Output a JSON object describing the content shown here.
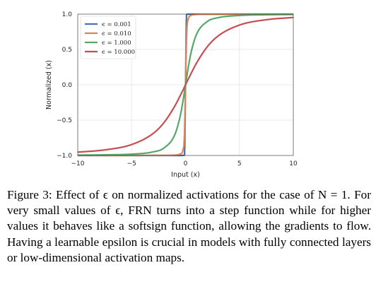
{
  "chart_data": {
    "type": "line",
    "title": "",
    "xlabel": "Input (x)",
    "ylabel": "Normalized (x)",
    "xlim": [
      -10,
      10
    ],
    "ylim": [
      -1,
      1
    ],
    "xticks": [
      -10,
      -5,
      0,
      5,
      10
    ],
    "xtick_labels": [
      "−10",
      "−5",
      "0",
      "5",
      "10"
    ],
    "yticks": [
      -1,
      -0.5,
      0,
      0.5,
      1
    ],
    "ytick_labels": [
      "−1.0",
      "−0.5",
      "0.0",
      "0.5",
      "1.0"
    ],
    "grid": true,
    "legend_position": "top-left",
    "x": [
      -10,
      -7.5,
      -5,
      -3,
      -2,
      -1,
      -0.5,
      -0.25,
      -0.1,
      0,
      0.1,
      0.25,
      0.5,
      1,
      2,
      3,
      5,
      7.5,
      10
    ],
    "series": [
      {
        "name": "ϵ = 0.001",
        "color": "#4c72b0",
        "values": [
          -1.0,
          -1.0,
          -1.0,
          -1.0,
          -1.0,
          -1.0,
          -1.0,
          -0.999,
          -0.995,
          0.0,
          0.995,
          0.999,
          1.0,
          1.0,
          1.0,
          1.0,
          1.0,
          1.0,
          1.0
        ]
      },
      {
        "name": "ϵ = 0.010",
        "color": "#dd8452",
        "values": [
          -1.0,
          -1.0,
          -1.0,
          -0.999,
          -0.999,
          -0.995,
          -0.98,
          -0.928,
          -0.707,
          0.0,
          0.707,
          0.928,
          0.98,
          0.995,
          0.999,
          0.999,
          1.0,
          1.0,
          1.0
        ]
      },
      {
        "name": "ϵ = 1.000",
        "color": "#55a868",
        "values": [
          -0.995,
          -0.991,
          -0.981,
          -0.949,
          -0.894,
          -0.707,
          -0.447,
          -0.243,
          -0.1,
          0.0,
          0.1,
          0.243,
          0.447,
          0.707,
          0.894,
          0.949,
          0.981,
          0.991,
          0.995
        ]
      },
      {
        "name": "ϵ = 10.000",
        "color": "#c44e52",
        "values": [
          -0.953,
          -0.921,
          -0.845,
          -0.688,
          -0.535,
          -0.302,
          -0.156,
          -0.079,
          -0.032,
          0.0,
          0.032,
          0.079,
          0.156,
          0.302,
          0.535,
          0.688,
          0.845,
          0.921,
          0.953
        ]
      }
    ]
  },
  "caption": "Figure 3: Effect of ϵ on normalized activations for the case of N = 1. For very small values of ϵ, FRN turns into a step function while for higher values it behaves like a softsign function, allowing the gradients to flow. Having a learnable epsilon is crucial in models with fully connected layers or low-dimensional activation maps."
}
